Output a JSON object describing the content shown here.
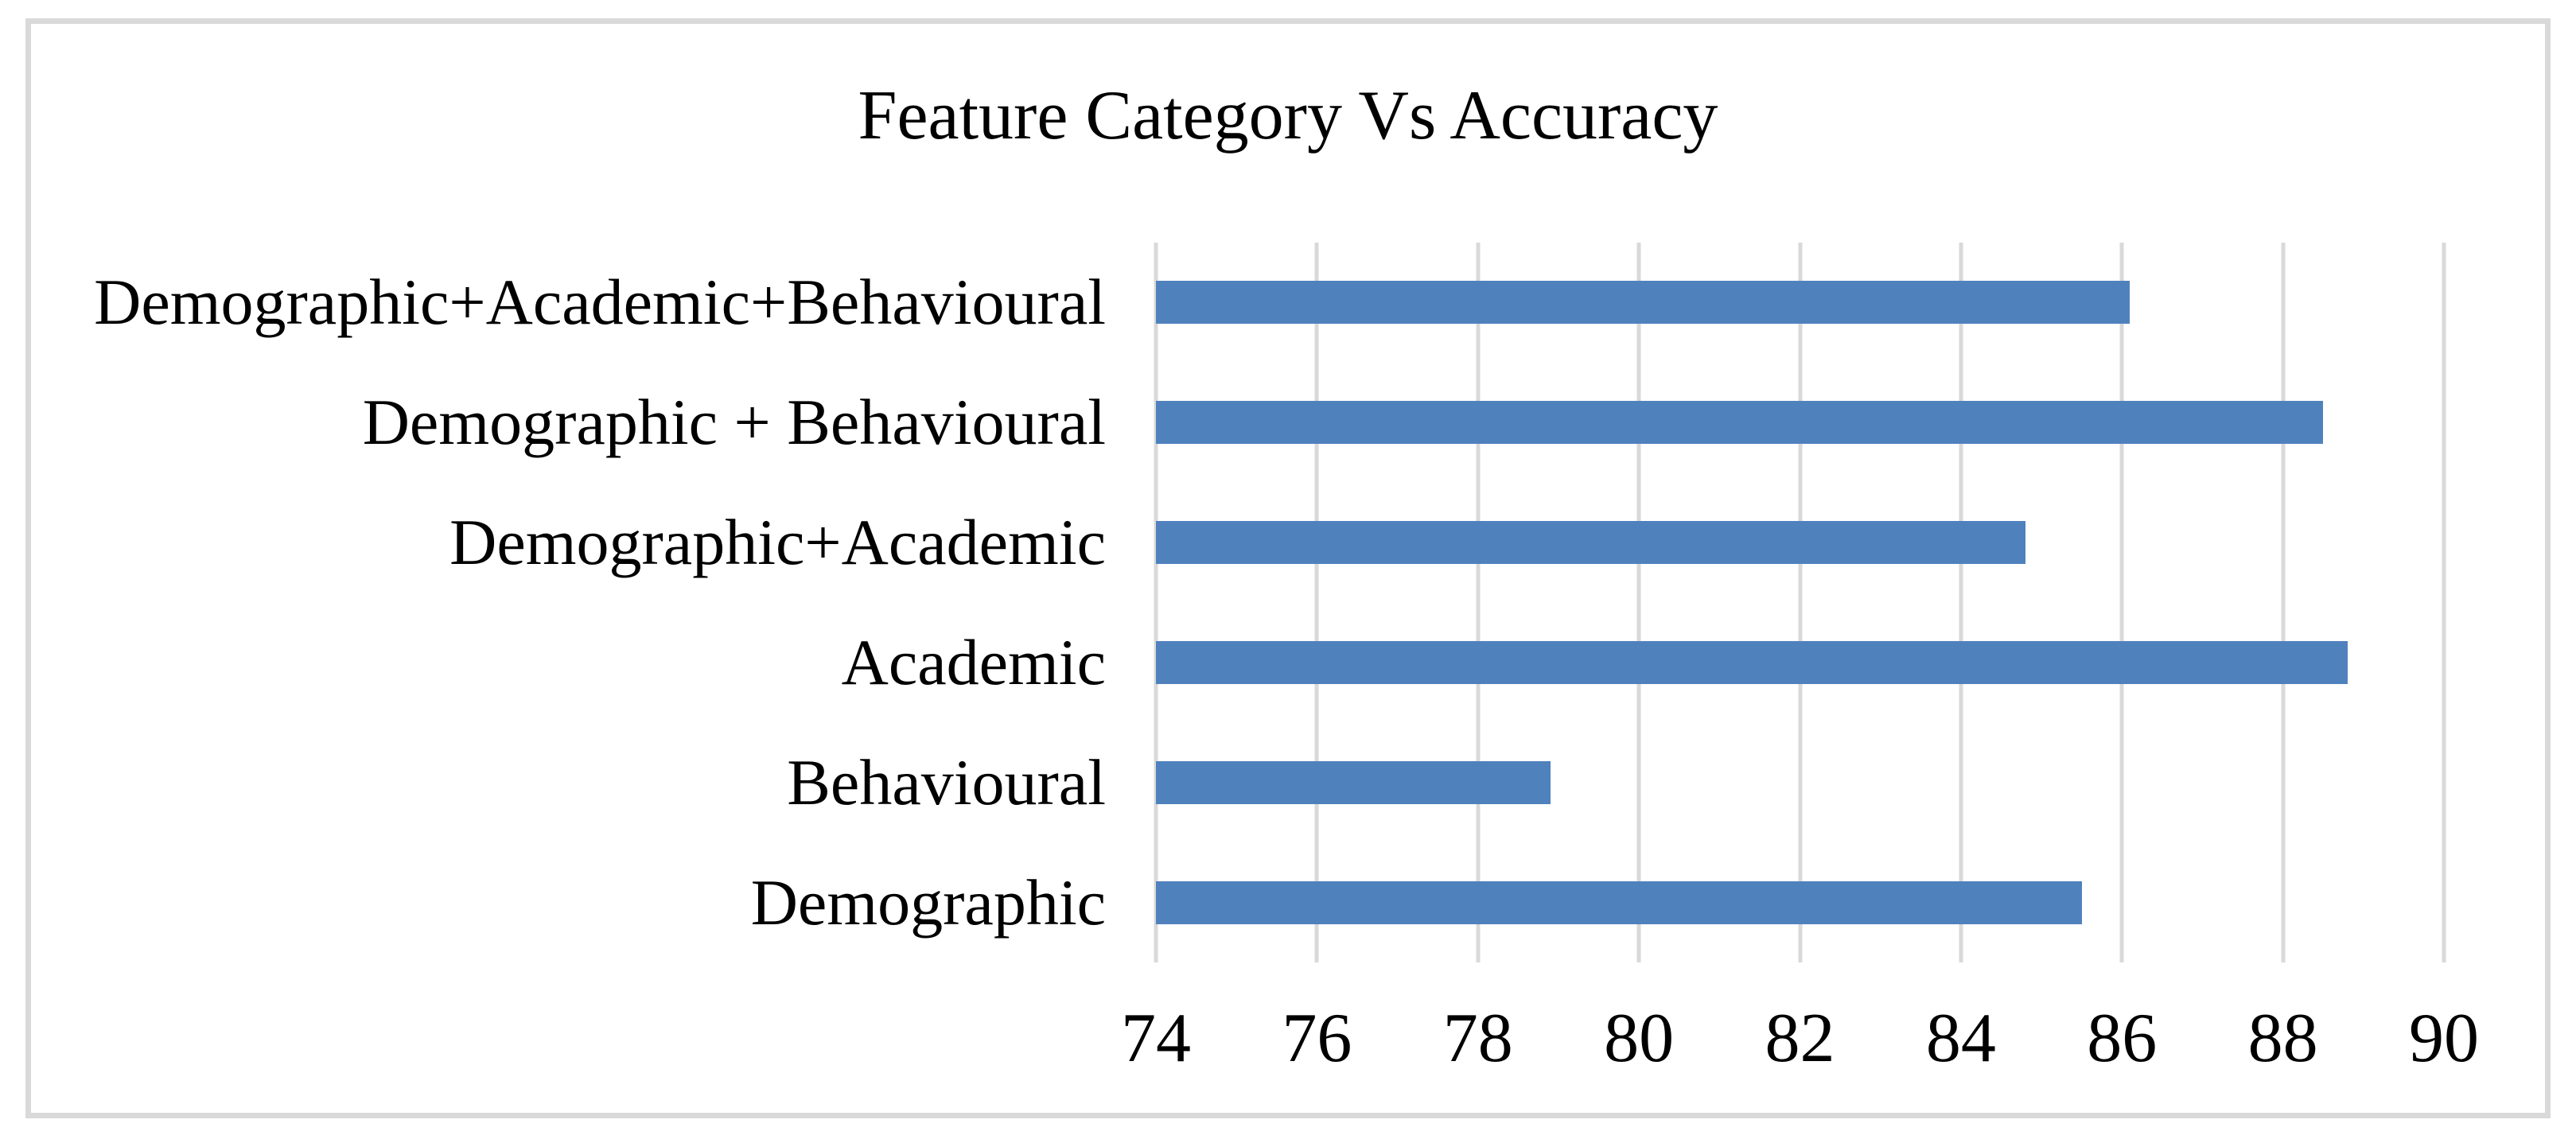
{
  "figure": {
    "title": "Feature Category Vs Accuracy"
  },
  "colors": {
    "bar": "#4F81BD",
    "gridline": "#D9D9D9",
    "border": "#D9D9D9",
    "text": "#000000",
    "background": "#FFFFFF"
  },
  "chart_data": {
    "type": "bar",
    "orientation": "horizontal",
    "title": "Feature Category Vs Accuracy",
    "categories": [
      "Demographic+Academic+Behavioural",
      "Demographic + Behavioural",
      "Demographic+Academic",
      "Academic",
      "Behavioural",
      "Demographic"
    ],
    "categories_order": "top-to-bottom",
    "values": [
      86.1,
      88.5,
      84.8,
      88.8,
      78.9,
      85.5
    ],
    "series_name": "Accuracy",
    "xlabel": "",
    "ylabel": "",
    "xlim": [
      74,
      90
    ],
    "xticks": [
      74,
      76,
      78,
      80,
      82,
      84,
      86,
      88,
      90
    ],
    "grid": true,
    "legend": false,
    "data_labels": false
  }
}
